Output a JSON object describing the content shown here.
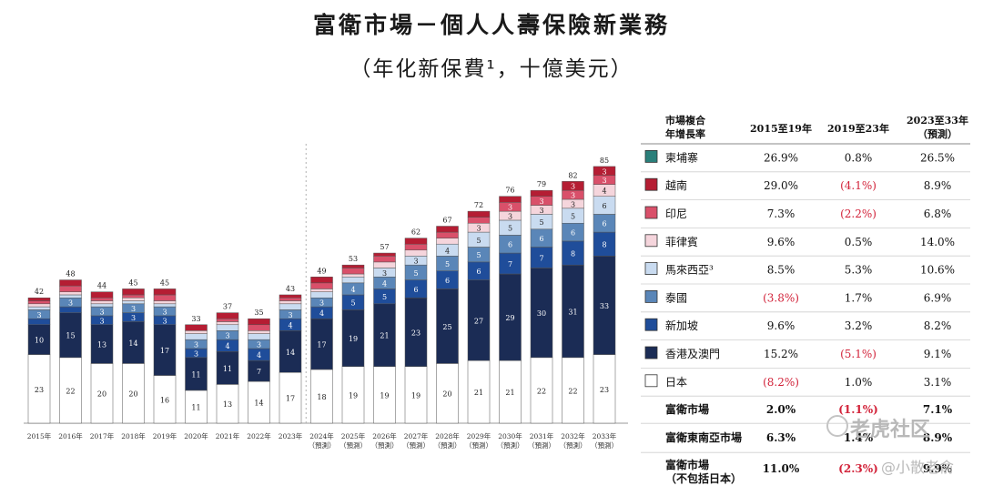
{
  "colors": {
    "cambodia": "#2a7f7a",
    "vietnam": "#b51d33",
    "indonesia": "#d9506a",
    "philippines": "#f5d5dc",
    "malaysia": "#c9dbf0",
    "thailand": "#5a86b8",
    "singapore": "#1f4d9a",
    "hongkong_macau": "#1b2c55",
    "japan": "#ffffff",
    "negative": "#d2233a"
  },
  "title": "富衛市場－個人人壽保險新業務",
  "subtitle": "（年化新保費¹，十億美元）",
  "chart_data": {
    "type": "bar",
    "stacked": true,
    "categories": [
      "2015年",
      "2016年",
      "2017年",
      "2018年",
      "2019年",
      "2020年",
      "2021年",
      "2022年",
      "2023年",
      "2024年",
      "2025年",
      "2026年",
      "2027年",
      "2028年",
      "2029年",
      "2030年",
      "2031年",
      "2032年",
      "2033年"
    ],
    "category_sublabels": [
      "",
      "",
      "",
      "",
      "",
      "",
      "",
      "",
      "",
      "（預測）",
      "（預測）",
      "（預測）",
      "（預測）",
      "（預測）",
      "（預測）",
      "（預測）",
      "（預測）",
      "（預測）",
      "（預測）"
    ],
    "totals": [
      42,
      48,
      44,
      45,
      45,
      33,
      37,
      35,
      43,
      49,
      53,
      57,
      62,
      67,
      72,
      76,
      79,
      82,
      85
    ],
    "series": [
      {
        "name": "日本",
        "key": "japan",
        "values": [
          23,
          22,
          20,
          20,
          16,
          11,
          13,
          14,
          17,
          18,
          19,
          19,
          19,
          20,
          21,
          21,
          22,
          22,
          23
        ]
      },
      {
        "name": "香港及澳門",
        "key": "hongkong_macau",
        "values": [
          10,
          15,
          13,
          14,
          17,
          11,
          11,
          7,
          14,
          17,
          19,
          21,
          23,
          25,
          27,
          29,
          30,
          31,
          33
        ]
      },
      {
        "name": "新加坡",
        "key": "singapore",
        "values": [
          2,
          2,
          3,
          3,
          3,
          3,
          4,
          4,
          4,
          4,
          5,
          5,
          6,
          6,
          6,
          7,
          7,
          8,
          8
        ]
      },
      {
        "name": "泰國",
        "key": "thailand",
        "values": [
          3,
          3,
          3,
          3,
          3,
          3,
          3,
          3,
          3,
          3,
          4,
          4,
          5,
          5,
          5,
          6,
          6,
          6,
          6
        ]
      },
      {
        "name": "馬來西亞³",
        "key": "malaysia",
        "values": [
          1,
          1,
          1,
          1,
          1,
          2,
          2,
          2,
          2,
          2,
          2,
          3,
          3,
          4,
          5,
          5,
          5,
          5,
          6
        ]
      },
      {
        "name": "菲律賓",
        "key": "philippines",
        "values": [
          1,
          1,
          1,
          1,
          1,
          1,
          1,
          1,
          1,
          1,
          1,
          2,
          2,
          2,
          3,
          3,
          3,
          3,
          4
        ]
      },
      {
        "name": "印尼",
        "key": "indonesia",
        "values": [
          1,
          2,
          1,
          1,
          2,
          0,
          1,
          2,
          1,
          2,
          2,
          2,
          2,
          2,
          2,
          3,
          3,
          3,
          3
        ]
      },
      {
        "name": "越南",
        "key": "vietnam",
        "values": [
          1,
          2,
          2,
          2,
          2,
          2,
          2,
          2,
          1,
          2,
          1,
          1,
          2,
          2,
          2,
          2,
          2,
          3,
          3
        ]
      },
      {
        "name": "柬埔寨",
        "key": "cambodia",
        "values": [
          0,
          0,
          0,
          0,
          0,
          0,
          0,
          0,
          0,
          0,
          0,
          0,
          0,
          0,
          0,
          0,
          0,
          0,
          0
        ]
      }
    ],
    "ylim": [
      0,
      90
    ],
    "forecast_from_index": 9,
    "legend": "right table"
  },
  "table": {
    "headers": [
      "市場複合\n年增長率",
      "2015至19年",
      "2019至23年",
      "2023至33年\n（預測）"
    ],
    "rows": [
      {
        "market": "柬埔寨",
        "key": "cambodia",
        "a": "26.9%",
        "a_neg": false,
        "b": "0.8%",
        "b_neg": false,
        "c": "26.5%",
        "c_neg": false
      },
      {
        "market": "越南",
        "key": "vietnam",
        "a": "29.0%",
        "a_neg": false,
        "b": "(4.1%)",
        "b_neg": true,
        "c": "8.9%",
        "c_neg": false
      },
      {
        "market": "印尼",
        "key": "indonesia",
        "a": "7.3%",
        "a_neg": false,
        "b": "(2.2%)",
        "b_neg": true,
        "c": "6.8%",
        "c_neg": false
      },
      {
        "market": "菲律賓",
        "key": "philippines",
        "a": "9.6%",
        "a_neg": false,
        "b": "0.5%",
        "b_neg": false,
        "c": "14.0%",
        "c_neg": false
      },
      {
        "market": "馬來西亞³",
        "key": "malaysia",
        "a": "8.5%",
        "a_neg": false,
        "b": "5.3%",
        "b_neg": false,
        "c": "10.6%",
        "c_neg": false
      },
      {
        "market": "泰國",
        "key": "thailand",
        "a": "(3.8%)",
        "a_neg": true,
        "b": "1.7%",
        "b_neg": false,
        "c": "6.9%",
        "c_neg": false
      },
      {
        "market": "新加坡",
        "key": "singapore",
        "a": "9.6%",
        "a_neg": false,
        "b": "3.2%",
        "b_neg": false,
        "c": "8.2%",
        "c_neg": false
      },
      {
        "market": "香港及澳門",
        "key": "hongkong_macau",
        "a": "15.2%",
        "a_neg": false,
        "b": "(5.1%)",
        "b_neg": true,
        "c": "9.1%",
        "c_neg": false
      },
      {
        "market": "日本",
        "key": "japan",
        "a": "(8.2%)",
        "a_neg": true,
        "b": "1.0%",
        "b_neg": false,
        "c": "3.1%",
        "c_neg": false
      }
    ],
    "summary_rows": [
      {
        "market": "富衛市場",
        "a": "2.0%",
        "a_neg": false,
        "b": "(1.1%)",
        "b_neg": true,
        "c": "7.1%",
        "c_neg": false
      },
      {
        "market": "富衛東南亞市場",
        "a": "6.3%",
        "a_neg": false,
        "b": "1.4%",
        "b_neg": false,
        "c": "8.9%",
        "c_neg": false
      },
      {
        "market": "富衛市場\n（不包括日本）",
        "a": "11.0%",
        "a_neg": false,
        "b": "(2.3%)",
        "b_neg": true,
        "c": "9.9%",
        "c_neg": false
      }
    ]
  },
  "watermark": {
    "main": "老虎社区",
    "sub": "@小散老俞"
  }
}
